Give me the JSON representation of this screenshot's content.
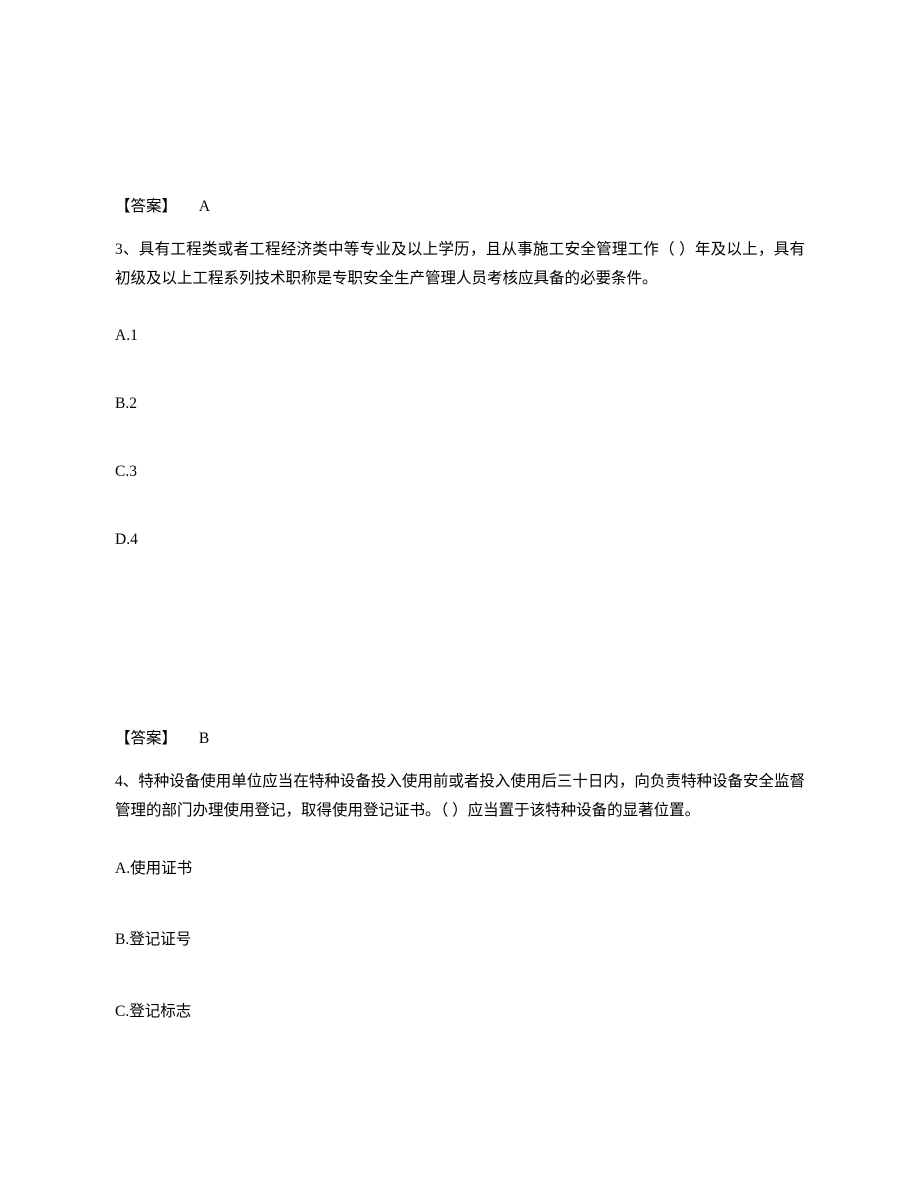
{
  "answer2": {
    "label": "【答案】",
    "letter": "A"
  },
  "question3": {
    "prefix": "3、",
    "text": "具有工程类或者工程经济类中等专业及以上学历，且从事施工安全管理工作（ ）年及以上，具有初级及以上工程系列技术职称是专职安全生产管理人员考核应具备的必要条件。",
    "options": {
      "a": "A.1",
      "b": "B.2",
      "c": "C.3",
      "d": "D.4"
    }
  },
  "answer3": {
    "label": "【答案】",
    "letter": "B"
  },
  "question4": {
    "prefix": "4、",
    "text": "特种设备使用单位应当在特种设备投入使用前或者投入使用后三十日内，向负责特种设备安全监督管理的部门办理使用登记，取得使用登记证书。（ ）应当置于该特种设备的显著位置。",
    "options": {
      "a": "A.使用证书",
      "b": "B.登记证号",
      "c": "C.登记标志"
    }
  }
}
